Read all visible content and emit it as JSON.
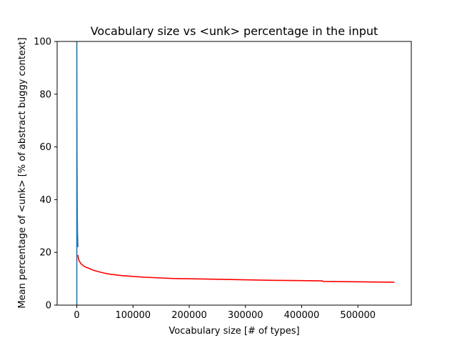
{
  "chart_data": {
    "type": "line",
    "title": "Vocabulary size vs <unk> percentage in the input",
    "xlabel": "Vocabulary size [# of types]",
    "ylabel": "Mean percentage of <unk> [% of abstract buggy context]",
    "xlim": [
      -35000,
      595000
    ],
    "ylim": [
      0,
      100
    ],
    "x_ticks": [
      0,
      100000,
      200000,
      300000,
      400000,
      500000
    ],
    "x_tick_labels": [
      "0",
      "100000",
      "200000",
      "300000",
      "400000",
      "500000"
    ],
    "y_ticks": [
      0,
      20,
      40,
      60,
      80,
      100
    ],
    "y_tick_labels": [
      "0",
      "20",
      "40",
      "60",
      "80",
      "100"
    ],
    "grid": false,
    "legend": "none",
    "series": [
      {
        "color": "#1f77b4",
        "x": [
          0,
          0,
          300,
          700,
          1200,
          2000
        ],
        "y": [
          0,
          100,
          60,
          40,
          28,
          22
        ]
      },
      {
        "color": "#ff0000",
        "x": [
          2000,
          3000,
          5000,
          8000,
          12000,
          16000,
          20000,
          30000,
          40000,
          50000,
          60000,
          80000,
          100000,
          120000,
          140000,
          170000,
          200000,
          250000,
          300000,
          350000,
          400000,
          437000,
          438000,
          480000,
          520000,
          565000
        ],
        "y": [
          19,
          17.5,
          16.5,
          15.6,
          14.9,
          14.4,
          14.1,
          13.2,
          12.6,
          12.1,
          11.7,
          11.2,
          10.9,
          10.6,
          10.4,
          10.1,
          10.0,
          9.8,
          9.6,
          9.4,
          9.3,
          9.2,
          9.0,
          8.9,
          8.8,
          8.7
        ]
      }
    ]
  }
}
